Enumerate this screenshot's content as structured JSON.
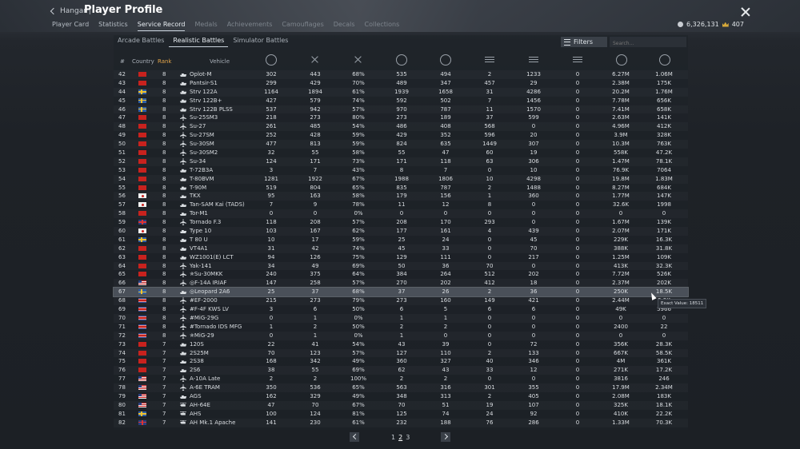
{
  "header": {
    "back_label": "Hangar |",
    "title": "Player Profile",
    "tabs": [
      "Player Card",
      "Statistics",
      "Service Record",
      "Medals",
      "Achievements",
      "Camouflages",
      "Decals",
      "Collections"
    ],
    "active_tab": 2,
    "silver_lions": "6,326,131",
    "golden_eagles": "407"
  },
  "modes": {
    "tabs": [
      "Arcade Battles",
      "Realistic Battles",
      "Simulator Battles"
    ],
    "active": 1
  },
  "toolbar": {
    "filters_label": "Filters",
    "search_placeholder": "Search..."
  },
  "columns": {
    "num": "#",
    "country": "Country",
    "rank": "Rank",
    "vehicle": "Vehicle"
  },
  "rows": [
    {
      "n": "42",
      "country": "china",
      "rank": "8",
      "type": "tank",
      "name": "Oplot-M",
      "v": [
        "302",
        "443",
        "68%",
        "535",
        "494",
        "2",
        "1233",
        "0",
        "6.27M",
        "1.06M"
      ]
    },
    {
      "n": "43",
      "country": "china",
      "rank": "8",
      "type": "tank",
      "name": "Pantsir-S1",
      "v": [
        "299",
        "429",
        "70%",
        "489",
        "347",
        "457",
        "29",
        "0",
        "2.38M",
        "175K"
      ]
    },
    {
      "n": "44",
      "country": "sweden",
      "rank": "8",
      "type": "tank",
      "name": "Strv 122A",
      "v": [
        "1164",
        "1894",
        "61%",
        "1939",
        "1658",
        "31",
        "4286",
        "0",
        "20.2M",
        "1.76M"
      ]
    },
    {
      "n": "45",
      "country": "sweden",
      "rank": "8",
      "type": "tank",
      "name": "Strv 122B+",
      "v": [
        "427",
        "579",
        "74%",
        "592",
        "502",
        "7",
        "1456",
        "0",
        "7.78M",
        "656K"
      ]
    },
    {
      "n": "46",
      "country": "sweden",
      "rank": "8",
      "type": "tank",
      "name": "Strv 122B PLSS",
      "v": [
        "537",
        "942",
        "57%",
        "970",
        "787",
        "11",
        "1570",
        "0",
        "7.41M",
        "658K"
      ]
    },
    {
      "n": "47",
      "country": "china",
      "rank": "8",
      "type": "jet",
      "name": "Su-25SM3",
      "v": [
        "218",
        "273",
        "80%",
        "273",
        "189",
        "37",
        "599",
        "0",
        "2.63M",
        "141K"
      ]
    },
    {
      "n": "48",
      "country": "china",
      "rank": "8",
      "type": "jet",
      "name": "Su-27",
      "v": [
        "261",
        "485",
        "54%",
        "486",
        "408",
        "568",
        "0",
        "0",
        "4.96M",
        "412K"
      ]
    },
    {
      "n": "49",
      "country": "china",
      "rank": "8",
      "type": "jet",
      "name": "Su-27SM",
      "v": [
        "252",
        "428",
        "59%",
        "429",
        "352",
        "596",
        "20",
        "0",
        "3.9M",
        "328K"
      ]
    },
    {
      "n": "50",
      "country": "china",
      "rank": "8",
      "type": "jet",
      "name": "Su-30SM",
      "v": [
        "477",
        "813",
        "59%",
        "824",
        "635",
        "1449",
        "307",
        "0",
        "10.3M",
        "763K"
      ]
    },
    {
      "n": "51",
      "country": "china",
      "rank": "8",
      "type": "jet",
      "name": "Su-30SM2",
      "v": [
        "32",
        "55",
        "58%",
        "55",
        "47",
        "60",
        "19",
        "0",
        "558K",
        "47.2K"
      ]
    },
    {
      "n": "52",
      "country": "china",
      "rank": "8",
      "type": "jet",
      "name": "Su-34",
      "v": [
        "124",
        "171",
        "73%",
        "171",
        "118",
        "63",
        "306",
        "0",
        "1.47M",
        "78.1K"
      ]
    },
    {
      "n": "53",
      "country": "china",
      "rank": "8",
      "type": "tank",
      "name": "T-72B3A",
      "v": [
        "3",
        "7",
        "43%",
        "8",
        "7",
        "0",
        "10",
        "0",
        "76.9K",
        "7064"
      ]
    },
    {
      "n": "54",
      "country": "china",
      "rank": "8",
      "type": "tank",
      "name": "T-80BVM",
      "v": [
        "1281",
        "1922",
        "67%",
        "1988",
        "1806",
        "10",
        "4298",
        "0",
        "19.8M",
        "1.83M"
      ]
    },
    {
      "n": "55",
      "country": "china",
      "rank": "8",
      "type": "tank",
      "name": "T-90M",
      "v": [
        "519",
        "804",
        "65%",
        "835",
        "787",
        "2",
        "1488",
        "0",
        "8.27M",
        "684K"
      ]
    },
    {
      "n": "56",
      "country": "japan",
      "rank": "8",
      "type": "tank",
      "name": "TKX",
      "v": [
        "95",
        "163",
        "58%",
        "179",
        "156",
        "1",
        "360",
        "0",
        "1.77M",
        "147K"
      ]
    },
    {
      "n": "57",
      "country": "japan",
      "rank": "8",
      "type": "tank",
      "name": "Tan-SAM Kai (TADS)",
      "v": [
        "7",
        "9",
        "78%",
        "11",
        "12",
        "8",
        "0",
        "0",
        "32.6K",
        "1998"
      ]
    },
    {
      "n": "58",
      "country": "china",
      "rank": "8",
      "type": "tank",
      "name": "Tor-M1",
      "v": [
        "0",
        "0",
        "0%",
        "0",
        "0",
        "0",
        "0",
        "0",
        "0",
        "0"
      ]
    },
    {
      "n": "59",
      "country": "uk",
      "rank": "8",
      "type": "jet",
      "name": "Tornado F.3",
      "v": [
        "118",
        "208",
        "57%",
        "208",
        "170",
        "293",
        "0",
        "0",
        "1.67M",
        "139K"
      ]
    },
    {
      "n": "60",
      "country": "japan",
      "rank": "8",
      "type": "tank",
      "name": "Type 10",
      "v": [
        "103",
        "167",
        "62%",
        "177",
        "161",
        "4",
        "439",
        "0",
        "2.07M",
        "171K"
      ]
    },
    {
      "n": "61",
      "country": "sweden",
      "rank": "8",
      "type": "tank",
      "name": "T 80 U",
      "v": [
        "10",
        "17",
        "59%",
        "25",
        "24",
        "0",
        "45",
        "0",
        "229K",
        "16.3K"
      ]
    },
    {
      "n": "62",
      "country": "china",
      "rank": "8",
      "type": "tank",
      "name": "VT4A1",
      "v": [
        "31",
        "42",
        "74%",
        "45",
        "33",
        "0",
        "70",
        "0",
        "388K",
        "31.8K"
      ]
    },
    {
      "n": "63",
      "country": "china",
      "rank": "8",
      "type": "tank",
      "name": "WZ1001(E) LCT",
      "v": [
        "94",
        "126",
        "75%",
        "129",
        "111",
        "0",
        "217",
        "0",
        "1.25M",
        "109K"
      ]
    },
    {
      "n": "64",
      "country": "china",
      "rank": "8",
      "type": "jet",
      "name": "Yak-141",
      "v": [
        "34",
        "49",
        "69%",
        "50",
        "36",
        "70",
        "0",
        "0",
        "413K",
        "32.3K"
      ]
    },
    {
      "n": "65",
      "country": "china",
      "rank": "8",
      "type": "jet",
      "name": "✯Su-30MKK",
      "v": [
        "240",
        "375",
        "64%",
        "384",
        "264",
        "512",
        "202",
        "0",
        "7.72M",
        "526K"
      ]
    },
    {
      "n": "66",
      "country": "usa",
      "rank": "8",
      "type": "jet",
      "name": "◎F-14A IRIAF",
      "v": [
        "147",
        "258",
        "57%",
        "270",
        "202",
        "412",
        "18",
        "0",
        "2.37M",
        "202K"
      ]
    },
    {
      "n": "67",
      "country": "sweden",
      "rank": "8",
      "type": "tank",
      "name": "◎Leopard 2A6",
      "v": [
        "25",
        "37",
        "68%",
        "37",
        "26",
        "2",
        "36",
        "0",
        "250K",
        "18.5K"
      ],
      "selected": true
    },
    {
      "n": "68",
      "country": "nkorea",
      "rank": "8",
      "type": "jet",
      "name": "#EF-2000",
      "v": [
        "215",
        "273",
        "79%",
        "273",
        "160",
        "149",
        "421",
        "0",
        "2.44M",
        "2.3K"
      ]
    },
    {
      "n": "69",
      "country": "nkorea",
      "rank": "8",
      "type": "jet",
      "name": "#F-4F KWS LV",
      "v": [
        "3",
        "6",
        "50%",
        "6",
        "5",
        "6",
        "6",
        "0",
        "49K",
        "5966"
      ]
    },
    {
      "n": "70",
      "country": "nkorea",
      "rank": "8",
      "type": "jet",
      "name": "#MiG-29G",
      "v": [
        "0",
        "1",
        "0%",
        "1",
        "1",
        "0",
        "0",
        "0",
        "0",
        "0"
      ]
    },
    {
      "n": "71",
      "country": "nkorea",
      "rank": "8",
      "type": "jet",
      "name": "#Tornado IDS MFG",
      "v": [
        "1",
        "2",
        "50%",
        "2",
        "2",
        "0",
        "0",
        "0",
        "2400",
        "22"
      ]
    },
    {
      "n": "72",
      "country": "nkorea",
      "rank": "8",
      "type": "jet",
      "name": "✯MiG-29",
      "v": [
        "0",
        "1",
        "0%",
        "1",
        "0",
        "0",
        "0",
        "0",
        "0",
        "0"
      ]
    },
    {
      "n": "73",
      "country": "china",
      "rank": "7",
      "type": "tank",
      "name": "120S",
      "v": [
        "22",
        "41",
        "54%",
        "43",
        "39",
        "0",
        "72",
        "0",
        "356K",
        "28.3K"
      ]
    },
    {
      "n": "74",
      "country": "china",
      "rank": "7",
      "type": "tank",
      "name": "2S25M",
      "v": [
        "70",
        "123",
        "57%",
        "127",
        "110",
        "2",
        "133",
        "0",
        "667K",
        "58.5K"
      ]
    },
    {
      "n": "75",
      "country": "china",
      "rank": "7",
      "type": "tank",
      "name": "2S38",
      "v": [
        "168",
        "342",
        "49%",
        "360",
        "327",
        "40",
        "346",
        "0",
        "4M",
        "361K"
      ]
    },
    {
      "n": "76",
      "country": "china",
      "rank": "7",
      "type": "tank",
      "name": "2S6",
      "v": [
        "38",
        "55",
        "69%",
        "62",
        "43",
        "33",
        "12",
        "0",
        "271K",
        "17.2K"
      ]
    },
    {
      "n": "77",
      "country": "usa",
      "rank": "7",
      "type": "jet",
      "name": "A-10A Late",
      "v": [
        "2",
        "2",
        "100%",
        "2",
        "2",
        "0",
        "0",
        "0",
        "3816",
        "246"
      ]
    },
    {
      "n": "78",
      "country": "usa",
      "rank": "7",
      "type": "jet",
      "name": "A-6E TRAM",
      "v": [
        "350",
        "536",
        "65%",
        "563",
        "316",
        "301",
        "355",
        "0",
        "17.9M",
        "2.34M"
      ]
    },
    {
      "n": "79",
      "country": "usa",
      "rank": "7",
      "type": "tank",
      "name": "AGS",
      "v": [
        "162",
        "329",
        "49%",
        "348",
        "313",
        "2",
        "405",
        "0",
        "2.08M",
        "183K"
      ]
    },
    {
      "n": "80",
      "country": "usa",
      "rank": "7",
      "type": "heli",
      "name": "AH-64E",
      "v": [
        "47",
        "70",
        "67%",
        "70",
        "51",
        "19",
        "107",
        "0",
        "325K",
        "18.1K"
      ]
    },
    {
      "n": "81",
      "country": "sweden",
      "rank": "7",
      "type": "heli",
      "name": "AHS",
      "v": [
        "100",
        "124",
        "81%",
        "125",
        "74",
        "24",
        "92",
        "0",
        "410K",
        "22.2K"
      ]
    },
    {
      "n": "82",
      "country": "uk",
      "rank": "7",
      "type": "heli",
      "name": "AH Mk.1 Apache",
      "v": [
        "141",
        "230",
        "61%",
        "232",
        "188",
        "76",
        "286",
        "0",
        "1.33M",
        "70.3K"
      ]
    }
  ],
  "tooltip": {
    "text": "Exact Value: 18511"
  },
  "pagination": {
    "pages": [
      "1",
      "2",
      "3"
    ],
    "current": 1
  }
}
